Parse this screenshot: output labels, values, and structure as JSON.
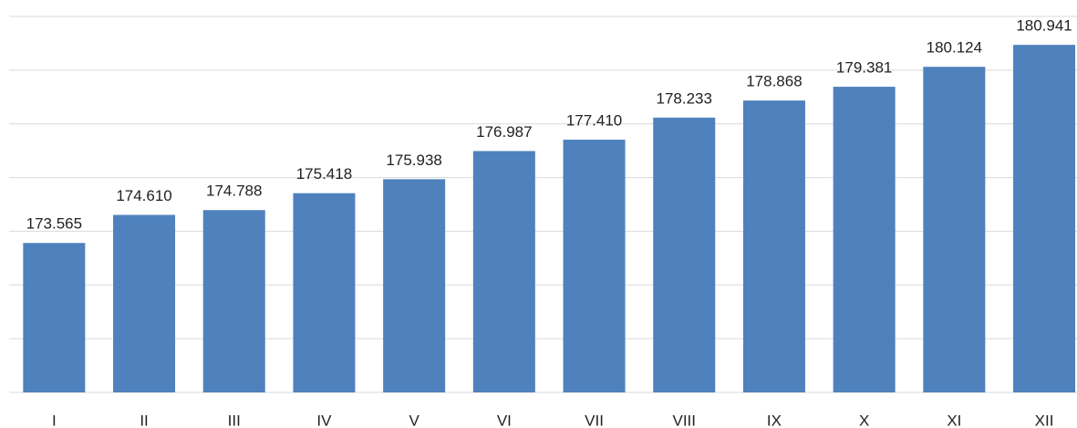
{
  "chart_data": {
    "type": "bar",
    "categories": [
      "I",
      "II",
      "III",
      "IV",
      "V",
      "VI",
      "VII",
      "VIII",
      "IX",
      "X",
      "XI",
      "XII"
    ],
    "values": [
      173.565,
      174.61,
      174.788,
      175.418,
      175.938,
      176.987,
      177.41,
      178.233,
      178.868,
      179.381,
      180.124,
      180.941
    ],
    "value_labels": [
      "173.565",
      "174.610",
      "174.788",
      "175.418",
      "175.938",
      "176.987",
      "177.410",
      "178.233",
      "178.868",
      "179.381",
      "180.124",
      "180.941"
    ],
    "color": "#4f81bd",
    "ylim": [
      168,
      182
    ],
    "yticks": [
      168,
      170,
      172,
      174,
      176,
      178,
      180,
      182
    ],
    "grid": true
  }
}
